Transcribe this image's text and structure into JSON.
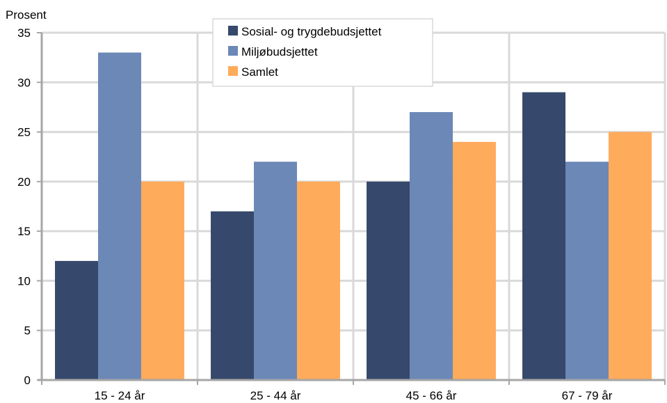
{
  "chart_data": {
    "type": "bar",
    "ylabel": "Prosent",
    "categories": [
      "15 - 24 år",
      "25 - 44 år",
      "45 - 66 år",
      "67 - 79 år"
    ],
    "series": [
      {
        "name": "Sosial- og trygdebudsjettet",
        "color": "#36486B",
        "values": [
          12,
          17,
          20,
          29
        ]
      },
      {
        "name": "Miljøbudsjettet",
        "color": "#6B88B6",
        "values": [
          33,
          22,
          27,
          22
        ]
      },
      {
        "name": "Samlet",
        "color": "#FFAB5C",
        "values": [
          20,
          20,
          24,
          25
        ]
      }
    ],
    "ylim": [
      0,
      35
    ],
    "yticks": [
      0,
      5,
      10,
      15,
      20,
      25,
      30,
      35
    ],
    "grid": true,
    "legend_position": "top-center"
  }
}
